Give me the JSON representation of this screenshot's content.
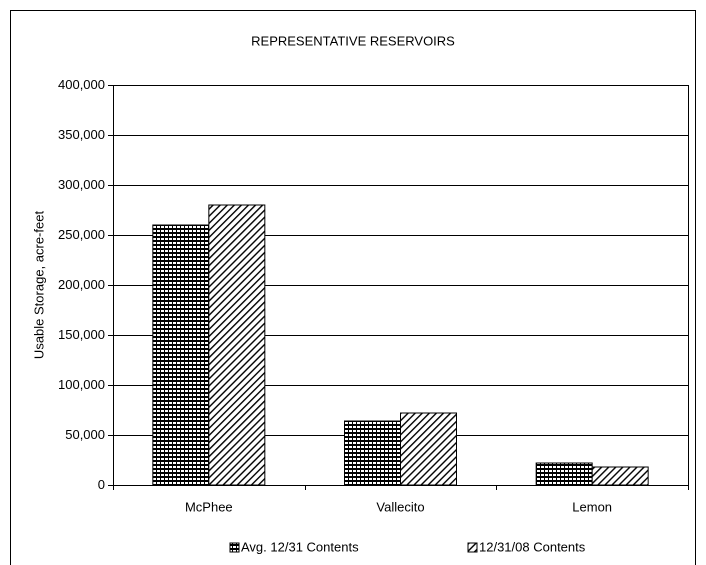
{
  "chart_data": {
    "type": "bar",
    "title": "REPRESENTATIVE RESERVOIRS",
    "y_label": "Usable Storage, acre-feet",
    "categories": [
      "McPhee",
      "Vallecito",
      "Lemon"
    ],
    "series": [
      {
        "name": "Avg. 12/31 Contents",
        "color": "#000000",
        "pattern": "grid",
        "values": [
          260000,
          64000,
          22000
        ]
      },
      {
        "name": "12/31/08 Contents",
        "color": "#000000",
        "pattern": "diagonal",
        "values": [
          280000,
          72000,
          18000
        ]
      }
    ],
    "ylim": [
      0,
      400000
    ],
    "yticks": [
      0,
      {
        "value": 50000,
        "label": "50,000"
      },
      {
        "value": 100000,
        "label": "100,000"
      },
      {
        "value": 150000,
        "label": "150,000"
      },
      {
        "value": 200000,
        "label": "200,000"
      },
      {
        "value": 250000,
        "label": "250,000"
      },
      {
        "value": 300000,
        "label": "300,000"
      },
      {
        "value": 350000,
        "label": "350,000"
      },
      {
        "value": 400000,
        "label": "400,000"
      }
    ],
    "grid": true,
    "legend": "bottom"
  }
}
